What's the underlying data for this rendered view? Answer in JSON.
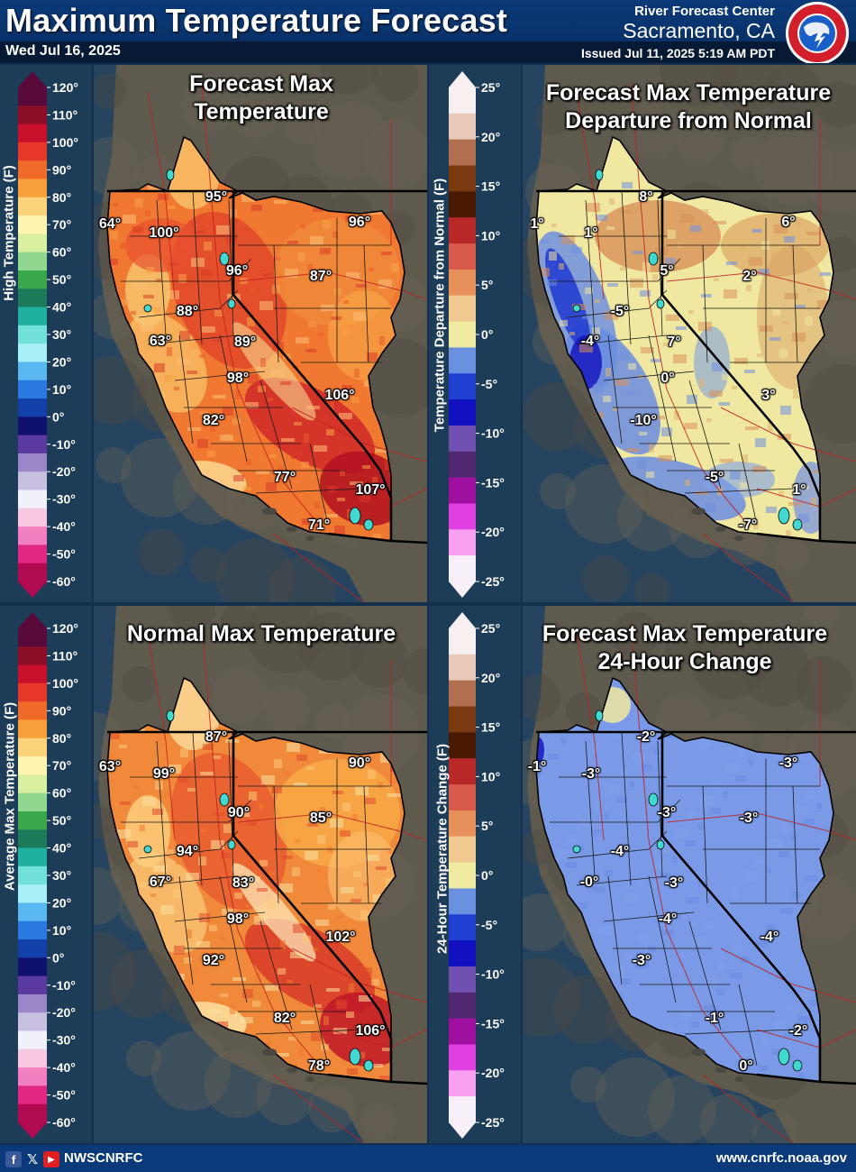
{
  "header": {
    "title": "Maximum Temperature Forecast",
    "date": "Wed Jul 16, 2025",
    "rfc_label": "River Forecast Center",
    "rfc_city": "Sacramento, CA",
    "issued": "Issued Jul 11, 2025 5:19 AM PDT",
    "logo_text": "NATIONAL WEATHER SERVICE"
  },
  "colorbars": {
    "temperature": {
      "title_top": "High Temperature (F)",
      "title_bottom": "Average Max Temperature (F)",
      "ticks": [
        "120°",
        "110°",
        "100°",
        "90°",
        "80°",
        "70°",
        "60°",
        "50°",
        "40°",
        "30°",
        "20°",
        "10°",
        "0°",
        "-10°",
        "-20°",
        "-30°",
        "-40°",
        "-50°",
        "-60°"
      ],
      "colors": [
        "#5a0a3a",
        "#8a0f26",
        "#c8102a",
        "#e8382a",
        "#f06a2a",
        "#f8a03a",
        "#fcd27a",
        "#fff3b0",
        "#d8f0a0",
        "#90d890",
        "#3aa84a",
        "#1a7a5a",
        "#20b0a0",
        "#70e0d8",
        "#a8f0f8",
        "#5ab8f0",
        "#2878e0",
        "#1040a8",
        "#101070",
        "#5a3aa0",
        "#9a88c8",
        "#c8c0e0",
        "#f0f0f8",
        "#f8c8e0",
        "#f080c0",
        "#e02880",
        "#b00a50"
      ]
    },
    "departure": {
      "title": "Temperature Departure from Normal (F)",
      "ticks": [
        "25°",
        "20°",
        "15°",
        "10°",
        "5°",
        "0°",
        "-5°",
        "-10°",
        "-15°",
        "-20°",
        "-25°"
      ],
      "colors": [
        "#f8f0f0",
        "#e8c8b8",
        "#b07050",
        "#7a3a10",
        "#4a1a00",
        "#b82828",
        "#d85a4a",
        "#e8905a",
        "#f0c890",
        "#f0eaa0",
        "#6a90e0",
        "#2040d0",
        "#1010c0",
        "#7050b0",
        "#502870",
        "#a010a0",
        "#e040e0",
        "#f8a0f0",
        "#f8f0f8"
      ]
    },
    "change": {
      "title": "24-Hour Temperature Change (F)",
      "ticks": [
        "25°",
        "20°",
        "15°",
        "10°",
        "5°",
        "0°",
        "-5°",
        "-10°",
        "-15°",
        "-20°",
        "-25°"
      ]
    }
  },
  "panels": {
    "forecast": {
      "title_l1": "Forecast Max",
      "title_l2": "Temperature",
      "labels": [
        "95°",
        "96°",
        "64°",
        "100°",
        "96°",
        "87°",
        "88°",
        "63°",
        "89°",
        "98°",
        "106°",
        "82°",
        "77°",
        "107°",
        "71°"
      ]
    },
    "departure": {
      "title_l1": "Forecast Max Temperature",
      "title_l2": "Departure from Normal",
      "labels": [
        "8°",
        "6°",
        "1°",
        "1°",
        "5°",
        "2°",
        "-5°",
        "-4°",
        "7°",
        "0°",
        "3°",
        "-10°",
        "-5°",
        "1°",
        "-7°"
      ]
    },
    "normal": {
      "title_l1": "Normal Max Temperature",
      "labels": [
        "87°",
        "90°",
        "63°",
        "99°",
        "90°",
        "85°",
        "94°",
        "67°",
        "83°",
        "98°",
        "102°",
        "92°",
        "82°",
        "106°",
        "78°"
      ]
    },
    "change": {
      "title_l1": "Forecast Max Temperature",
      "title_l2": "24-Hour Change",
      "labels": [
        "-2°",
        "-3°",
        "-1°",
        "-3°",
        "-3°",
        "-3°",
        "-4°",
        "-0°",
        "-3°",
        "-4°",
        "-4°",
        "-3°",
        "-1°",
        "-2°",
        "0°"
      ]
    }
  },
  "footer": {
    "handle": "NWSCNRFC",
    "website": "www.cnrfc.noaa.gov",
    "icons": [
      "facebook-icon",
      "x-icon",
      "youtube-icon"
    ]
  }
}
